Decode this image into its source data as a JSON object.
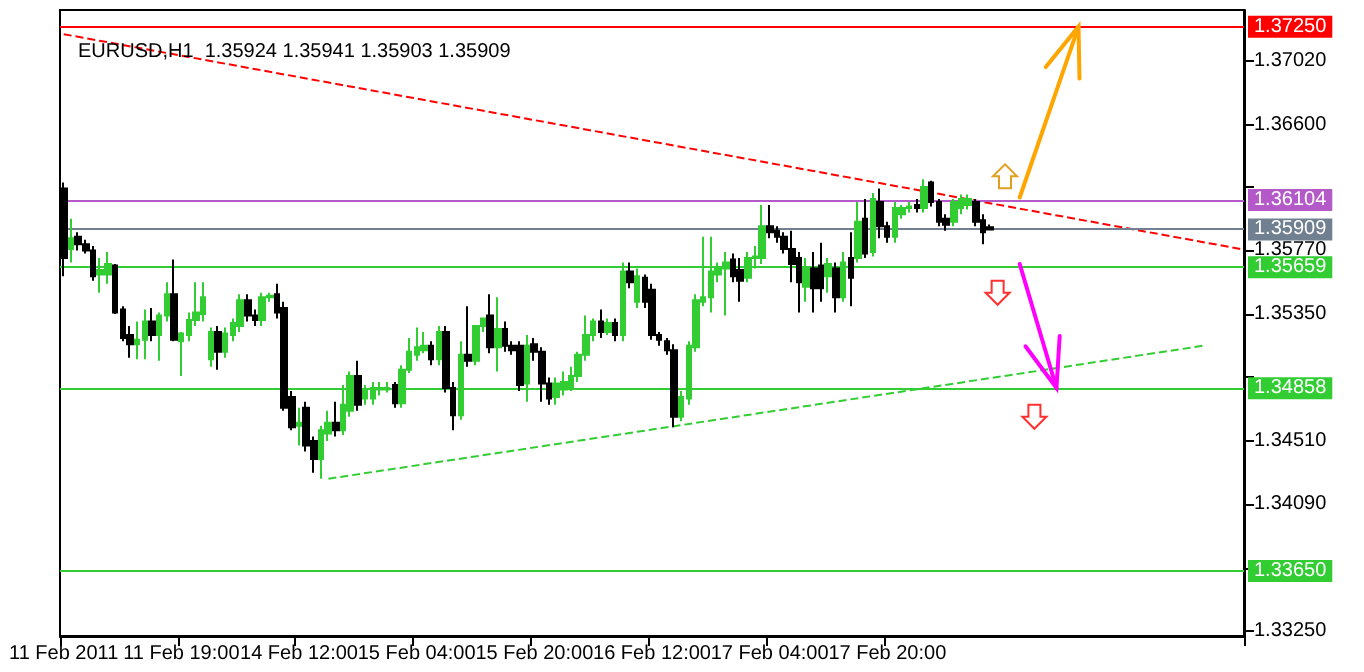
{
  "chart_data": {
    "type": "candlestick",
    "title": "EURUSD,H1  1.35924 1.35941 1.35903 1.35909",
    "categories": [
      "11 Feb 2011",
      null,
      null,
      null,
      null,
      null,
      null,
      null,
      null,
      null,
      null,
      null,
      null,
      null,
      null,
      null,
      "11 Feb 19:00",
      null,
      null,
      null,
      null,
      null,
      null,
      null,
      null,
      null,
      null,
      null,
      null,
      null,
      null,
      null,
      "14 Feb 12:00",
      null,
      null,
      null,
      null,
      null,
      null,
      null,
      null,
      null,
      null,
      null,
      null,
      null,
      null,
      null,
      "15 Feb 04:00",
      null,
      null,
      null,
      null,
      null,
      null,
      null,
      null,
      null,
      null,
      null,
      null,
      null,
      null,
      null,
      "15 Feb 20:00",
      null,
      null,
      null,
      null,
      null,
      null,
      null,
      null,
      null,
      null,
      null,
      null,
      null,
      null,
      null,
      "16 Feb 12:00",
      null,
      null,
      null,
      null,
      null,
      null,
      null,
      null,
      null,
      null,
      null,
      null,
      null,
      null,
      null,
      "17 Feb 04:00",
      null,
      null,
      null,
      null,
      null,
      null,
      null,
      null,
      null,
      null,
      null,
      null,
      null,
      null,
      null,
      "17 Feb 20:00",
      null,
      null,
      null,
      null,
      null,
      null,
      null,
      null,
      null,
      null,
      null,
      null,
      null,
      null,
      null,
      null,
      null,
      null,
      null,
      null,
      null,
      null,
      null,
      null,
      null,
      null,
      null,
      null,
      null,
      null,
      null,
      null,
      null,
      null,
      null,
      null,
      null,
      null,
      null,
      null,
      null,
      null,
      null,
      null,
      null,
      null,
      null,
      null
    ],
    "colors": [
      "#000000",
      "#32cd32",
      "#000000",
      "#000000",
      "#000000",
      "#32cd32",
      "#32cd32",
      "#000000",
      "#000000",
      "#000000",
      "#32cd32",
      "#32cd32",
      "#000000",
      "#32cd32",
      "#32cd32",
      "#000000",
      "#32cd32",
      "#32cd32",
      "#32cd32",
      "#32cd32",
      "#32cd32",
      "#000000",
      "#32cd32",
      "#32cd32",
      "#32cd32",
      "#000000",
      "#000000",
      "#32cd32",
      "#32cd32",
      "#000000",
      "#000000",
      "#000000",
      "#32cd32",
      "#000000",
      "#000000",
      "#32cd32",
      "#32cd32",
      "#000000",
      "#32cd32",
      "#32cd32",
      "#000000",
      "#32cd32",
      "#32cd32",
      "#32cd32",
      "#32cd32",
      "#000000",
      "#32cd32",
      "#32cd32",
      "#32cd32",
      "#32cd32",
      "#000000",
      "#32cd32",
      "#000000",
      "#000000",
      "#32cd32",
      "#000000",
      "#32cd32",
      "#32cd32",
      "#000000",
      "#32cd32",
      "#000000",
      "#000000",
      "#000000",
      "#32cd32",
      "#000000",
      "#000000",
      "#000000",
      "#32cd32",
      "#32cd32",
      "#32cd32",
      "#32cd32",
      "#32cd32",
      "#32cd32",
      "#000000",
      "#32cd32",
      "#000000",
      "#32cd32",
      "#000000",
      "#32cd32",
      "#000000",
      "#000000",
      "#000000",
      "#000000",
      "#000000",
      "#32cd32",
      "#32cd32",
      "#32cd32",
      "#32cd32",
      "#32cd32",
      "#32cd32",
      "#32cd32",
      "#000000",
      "#000000",
      "#32cd32",
      "#32cd32",
      "#32cd32",
      "#000000",
      "#000000",
      "#000000",
      "#000000",
      "#000000",
      "#32cd32",
      "#000000",
      "#000000",
      "#32cd32",
      "#000000",
      "#32cd32",
      "#000000",
      "#32cd32",
      "#000000",
      "#32cd32",
      "#000000",
      "#000000",
      "#32cd32",
      "#32cd32",
      "#32cd32",
      "#000000",
      "#32cd32",
      "#000000",
      "#000000",
      "#000000",
      "#32cd32",
      "#32cd32",
      "#32cd32",
      "#000000",
      "#000000",
      "#000000",
      null,
      null,
      null,
      null,
      null,
      null,
      null,
      null,
      null,
      null,
      null,
      null,
      null,
      null,
      null,
      null,
      null,
      null,
      null,
      null,
      null,
      null,
      null,
      null,
      null,
      null,
      null,
      null,
      null,
      null,
      null,
      null,
      null,
      null
    ],
    "ohlc": [
      [
        1.3618,
        1.3622,
        1.356,
        1.3572
      ],
      [
        1.3578,
        1.3598,
        1.3569,
        1.3585
      ],
      [
        1.3586,
        1.3589,
        1.3577,
        1.3581
      ],
      [
        1.3581,
        1.3584,
        1.3575,
        1.3577
      ],
      [
        1.3577,
        1.358,
        1.3557,
        1.356
      ],
      [
        1.3561,
        1.3572,
        1.3549,
        1.3564
      ],
      [
        1.3561,
        1.3576,
        1.3555,
        1.3568
      ],
      [
        1.3567,
        1.3568,
        1.3535,
        1.3536
      ],
      [
        1.3538,
        1.354,
        1.3517,
        1.3519
      ],
      [
        1.3521,
        1.3527,
        1.3506,
        1.3515
      ],
      [
        1.3515,
        1.353,
        1.3505,
        1.3518
      ],
      [
        1.3518,
        1.3538,
        1.3505,
        1.353
      ],
      [
        1.353,
        1.3539,
        1.3517,
        1.3521
      ],
      [
        1.3521,
        1.3536,
        1.3504,
        1.3534
      ],
      [
        1.3534,
        1.3556,
        1.353,
        1.3548
      ],
      [
        1.3548,
        1.3571,
        1.3517,
        1.3518
      ],
      [
        1.3517,
        1.3523,
        1.3494,
        1.3522
      ],
      [
        1.3521,
        1.3536,
        1.3517,
        1.3531
      ],
      [
        1.3531,
        1.3556,
        1.3527,
        1.3536
      ],
      [
        1.3535,
        1.3556,
        1.353,
        1.3546
      ],
      [
        1.3505,
        1.3526,
        1.35,
        1.3523
      ],
      [
        1.3523,
        1.3527,
        1.3498,
        1.351
      ],
      [
        1.351,
        1.3526,
        1.3506,
        1.3522
      ],
      [
        1.3521,
        1.3532,
        1.3517,
        1.3529
      ],
      [
        1.3527,
        1.3548,
        1.3523,
        1.3544
      ],
      [
        1.3544,
        1.3548,
        1.353,
        1.3534
      ],
      [
        1.3534,
        1.3538,
        1.3527,
        1.3531
      ],
      [
        1.3531,
        1.3549,
        1.3527,
        1.3546
      ],
      [
        1.3546,
        1.3549,
        1.3543,
        1.3547
      ],
      [
        1.3548,
        1.3555,
        1.3532,
        1.3536
      ],
      [
        1.3539,
        1.3543,
        1.3471,
        1.3473
      ],
      [
        1.348,
        1.3484,
        1.3458,
        1.346
      ],
      [
        1.3461,
        1.3473,
        1.3448,
        1.3463
      ],
      [
        1.3473,
        1.3477,
        1.3444,
        1.3448
      ],
      [
        1.3451,
        1.3454,
        1.343,
        1.3439
      ],
      [
        1.3439,
        1.3461,
        1.3426,
        1.3458
      ],
      [
        1.3456,
        1.3471,
        1.3451,
        1.3463
      ],
      [
        1.3463,
        1.3477,
        1.3454,
        1.3458
      ],
      [
        1.3458,
        1.3488,
        1.3455,
        1.3475
      ],
      [
        1.3471,
        1.3497,
        1.3467,
        1.3494
      ],
      [
        1.3494,
        1.3504,
        1.3471,
        1.3475
      ],
      [
        1.3479,
        1.3488,
        1.3475,
        1.3484
      ],
      [
        1.3479,
        1.349,
        1.3475,
        1.3486
      ],
      [
        1.3485,
        1.349,
        1.3481,
        1.3486
      ],
      [
        1.3485,
        1.349,
        1.3483,
        1.3486
      ],
      [
        1.3488,
        1.349,
        1.3473,
        1.3476
      ],
      [
        1.3476,
        1.3501,
        1.3473,
        1.3498
      ],
      [
        1.3498,
        1.3519,
        1.3496,
        1.351
      ],
      [
        1.3508,
        1.3526,
        1.3504,
        1.3513
      ],
      [
        1.3511,
        1.3523,
        1.3509,
        1.3514
      ],
      [
        1.3514,
        1.3517,
        1.3501,
        1.3505
      ],
      [
        1.3505,
        1.3527,
        1.3501,
        1.3523
      ],
      [
        1.3523,
        1.3527,
        1.3483,
        1.3486
      ],
      [
        1.3486,
        1.349,
        1.3458,
        1.3468
      ],
      [
        1.3468,
        1.3517,
        1.3465,
        1.3508
      ],
      [
        1.3508,
        1.354,
        1.35,
        1.3504
      ],
      [
        1.3504,
        1.3527,
        1.3501,
        1.3527
      ],
      [
        1.3527,
        1.3532,
        1.3523,
        1.3532
      ],
      [
        1.3534,
        1.3548,
        1.3509,
        1.3513
      ],
      [
        1.3513,
        1.3546,
        1.3497,
        1.3525
      ],
      [
        1.3525,
        1.353,
        1.351,
        1.3514
      ],
      [
        1.3514,
        1.3517,
        1.3508,
        1.3511
      ],
      [
        1.3514,
        1.3517,
        1.3484,
        1.3488
      ],
      [
        1.3489,
        1.3521,
        1.3477,
        1.3514
      ],
      [
        1.3515,
        1.3519,
        1.3504,
        1.351
      ],
      [
        1.351,
        1.3513,
        1.3477,
        1.3489
      ],
      [
        1.3489,
        1.3493,
        1.3475,
        1.3479
      ],
      [
        1.348,
        1.3493,
        1.3475,
        1.3489
      ],
      [
        1.3485,
        1.3497,
        1.3481,
        1.349
      ],
      [
        1.3486,
        1.35,
        1.3484,
        1.3494
      ],
      [
        1.3494,
        1.351,
        1.349,
        1.3508
      ],
      [
        1.3508,
        1.3534,
        1.3504,
        1.3521
      ],
      [
        1.3521,
        1.3532,
        1.3517,
        1.353
      ],
      [
        1.353,
        1.3538,
        1.3519,
        1.3523
      ],
      [
        1.3523,
        1.3532,
        1.3521,
        1.3529
      ],
      [
        1.3529,
        1.3532,
        1.3517,
        1.3521
      ],
      [
        1.3521,
        1.3569,
        1.3517,
        1.3563
      ],
      [
        1.3563,
        1.3569,
        1.3552,
        1.3556
      ],
      [
        1.3543,
        1.3565,
        1.3539,
        1.356
      ],
      [
        1.3559,
        1.3561,
        1.3539,
        1.3543
      ],
      [
        1.3551,
        1.3555,
        1.3518,
        1.3521
      ],
      [
        1.3521,
        1.3523,
        1.3514,
        1.3518
      ],
      [
        1.3517,
        1.3519,
        1.3508,
        1.3511
      ],
      [
        1.3511,
        1.3515,
        1.346,
        1.3467
      ],
      [
        1.3467,
        1.3484,
        1.3464,
        1.348
      ],
      [
        1.3479,
        1.3517,
        1.3475,
        1.3514
      ],
      [
        1.3513,
        1.3548,
        1.351,
        1.3544
      ],
      [
        1.3543,
        1.3586,
        1.354,
        1.3546
      ],
      [
        1.3546,
        1.3586,
        1.3536,
        1.3563
      ],
      [
        1.3561,
        1.3569,
        1.3556,
        1.3565
      ],
      [
        1.3565,
        1.3576,
        1.3534,
        1.3569
      ],
      [
        1.3571,
        1.3575,
        1.3556,
        1.356
      ],
      [
        1.3564,
        1.3572,
        1.3543,
        1.3557
      ],
      [
        1.3559,
        1.3576,
        1.3556,
        1.3572
      ],
      [
        1.3572,
        1.358,
        1.3565,
        1.3573
      ],
      [
        1.3572,
        1.3607,
        1.3568,
        1.3593
      ],
      [
        1.3593,
        1.3607,
        1.3585,
        1.3589
      ],
      [
        1.359,
        1.3593,
        1.3582,
        1.3586
      ],
      [
        1.3586,
        1.3589,
        1.3575,
        1.3578
      ],
      [
        1.3578,
        1.359,
        1.3556,
        1.3568
      ],
      [
        1.3572,
        1.3576,
        1.3536,
        1.3556
      ],
      [
        1.3553,
        1.3572,
        1.3543,
        1.3565
      ],
      [
        1.3565,
        1.3576,
        1.3536,
        1.3552
      ],
      [
        1.3567,
        1.3582,
        1.3543,
        1.3552
      ],
      [
        1.356,
        1.3572,
        1.3549,
        1.3568
      ],
      [
        1.3565,
        1.3569,
        1.3536,
        1.3546
      ],
      [
        1.3546,
        1.3576,
        1.3543,
        1.3569
      ],
      [
        1.3572,
        1.3589,
        1.354,
        1.3559
      ],
      [
        1.3572,
        1.3609,
        1.3569,
        1.3596
      ],
      [
        1.3598,
        1.3611,
        1.3572,
        1.3575
      ],
      [
        1.3576,
        1.3615,
        1.3573,
        1.3611
      ],
      [
        1.3609,
        1.3618,
        1.3585,
        1.3593
      ],
      [
        1.3593,
        1.3596,
        1.3582,
        1.3586
      ],
      [
        1.3586,
        1.3609,
        1.3582,
        1.3605
      ],
      [
        1.3601,
        1.3607,
        1.3598,
        1.3605
      ],
      [
        1.3605,
        1.3609,
        1.3602,
        1.3606
      ],
      [
        1.3607,
        1.3611,
        1.3602,
        1.3605
      ],
      [
        1.3605,
        1.3624,
        1.3602,
        1.3619
      ],
      [
        1.3622,
        1.3623,
        1.3606,
        1.3609
      ],
      [
        1.3609,
        1.3611,
        1.3593,
        1.3596
      ],
      [
        1.3598,
        1.3601,
        1.359,
        1.3594
      ],
      [
        1.3596,
        1.3611,
        1.3593,
        1.3609
      ],
      [
        1.3605,
        1.3614,
        1.3601,
        1.3611
      ],
      [
        1.3607,
        1.3614,
        1.3604,
        1.3611
      ],
      [
        1.3609,
        1.3611,
        1.3593,
        1.3596
      ],
      [
        1.3597,
        1.3601,
        1.3581,
        1.3589
      ],
      [
        1.35924,
        1.35941,
        1.35903,
        1.35909
      ],
      null,
      null,
      null,
      null,
      null,
      null,
      null,
      null,
      null,
      null,
      null,
      null,
      null,
      null,
      null,
      null,
      null,
      null,
      null,
      null,
      null,
      null,
      null,
      null,
      null,
      null,
      null,
      null,
      null,
      null,
      null,
      null,
      null,
      null
    ],
    "series": [
      {
        "type": "line",
        "color": "#ff0000",
        "line_style": "dashed",
        "values": [
          1.372,
          null,
          null,
          null,
          null,
          null,
          null,
          null,
          null,
          null,
          null,
          null,
          null,
          null,
          null,
          null,
          null,
          null,
          null,
          null,
          null,
          null,
          null,
          null,
          null,
          null,
          null,
          null,
          null,
          null,
          null,
          null,
          null,
          null,
          null,
          null,
          null,
          null,
          null,
          null,
          null,
          null,
          null,
          null,
          null,
          null,
          null,
          null,
          null,
          null,
          null,
          null,
          null,
          null,
          null,
          null,
          null,
          null,
          null,
          null,
          null,
          null,
          null,
          null,
          null,
          null,
          null,
          null,
          null,
          null,
          null,
          null,
          null,
          null,
          null,
          null,
          null,
          null,
          null,
          null,
          null,
          null,
          null,
          null,
          null,
          null,
          null,
          null,
          null,
          null,
          null,
          null,
          null,
          null,
          null,
          null,
          null,
          null,
          null,
          null,
          null,
          null,
          null,
          null,
          null,
          null,
          null,
          null,
          null,
          null,
          null,
          null,
          null,
          null,
          null,
          null,
          null,
          null,
          null,
          null,
          null,
          null,
          null,
          null,
          null,
          null,
          null,
          null,
          null,
          null,
          null,
          null,
          null,
          null,
          null,
          null,
          null,
          null,
          null,
          null,
          null,
          null,
          null,
          null,
          null,
          null,
          null,
          null,
          null,
          null,
          null,
          null,
          null,
          null,
          null,
          null,
          null,
          null,
          null,
          null,
          1.3578
        ]
      },
      {
        "type": "line",
        "color": "#32cd32",
        "line_style": "dashed",
        "values": [
          null,
          null,
          null,
          null,
          null,
          null,
          null,
          null,
          null,
          null,
          null,
          null,
          null,
          null,
          null,
          null,
          null,
          null,
          null,
          null,
          null,
          null,
          null,
          null,
          null,
          null,
          null,
          null,
          null,
          null,
          null,
          null,
          null,
          null,
          null,
          null,
          1.3426,
          null,
          null,
          null,
          null,
          null,
          null,
          null,
          null,
          null,
          null,
          null,
          null,
          null,
          null,
          null,
          null,
          null,
          null,
          null,
          null,
          null,
          null,
          null,
          null,
          null,
          null,
          null,
          null,
          null,
          null,
          null,
          null,
          null,
          null,
          null,
          null,
          null,
          null,
          null,
          null,
          null,
          null,
          null,
          null,
          null,
          null,
          null,
          null,
          null,
          null,
          null,
          null,
          null,
          null,
          null,
          null,
          null,
          null,
          null,
          null,
          null,
          null,
          null,
          null,
          null,
          null,
          null,
          null,
          null,
          null,
          null,
          null,
          null,
          null,
          null,
          null,
          null,
          null,
          null,
          null,
          null,
          null,
          null,
          null,
          null,
          null,
          null,
          null,
          null,
          null,
          null,
          null,
          null,
          null,
          null,
          null,
          null,
          null,
          null,
          null,
          null,
          null,
          null,
          null,
          null,
          null,
          null,
          null,
          null,
          null,
          null,
          null,
          null,
          null,
          null,
          null,
          null,
          null,
          1.3514,
          null,
          null,
          null,
          null,
          null
        ]
      }
    ],
    "marker": "none",
    "ylim": [
      1.3322,
      1.3736
    ],
    "yticks": [
      {
        "value": 1.3702,
        "label": "1.37020"
      },
      {
        "value": 1.366,
        "label": "1.36600"
      },
      {
        "value": 1.3619,
        "label": null
      },
      {
        "value": 1.3577,
        "label": "1.35770"
      },
      {
        "value": 1.3535,
        "label": "1.35350"
      },
      {
        "value": 1.3493,
        "label": null
      },
      {
        "value": 1.3451,
        "label": "1.34510"
      },
      {
        "value": 1.3409,
        "label": "1.34090"
      },
      {
        "value": 1.3367,
        "label": null
      },
      {
        "value": 1.3325,
        "label": "1.33250"
      }
    ],
    "ref_lines": [
      {
        "axis": "y",
        "value": 1.3725,
        "label": "1.37250",
        "color": "#ff0000"
      },
      {
        "axis": "y",
        "value": 1.36104,
        "label": "1.36104",
        "color": "#b45ac8"
      },
      {
        "axis": "y",
        "value": 1.35909,
        "label": "1.35909",
        "color": "#708090"
      },
      {
        "axis": "y",
        "value": 1.35659,
        "label": "1.35659",
        "color": "#32cd32"
      },
      {
        "axis": "y",
        "value": 1.34858,
        "label": "1.34858",
        "color": "#32cd32"
      },
      {
        "axis": "y",
        "value": 1.3365,
        "label": "1.33650",
        "color": "#32cd32"
      }
    ]
  }
}
